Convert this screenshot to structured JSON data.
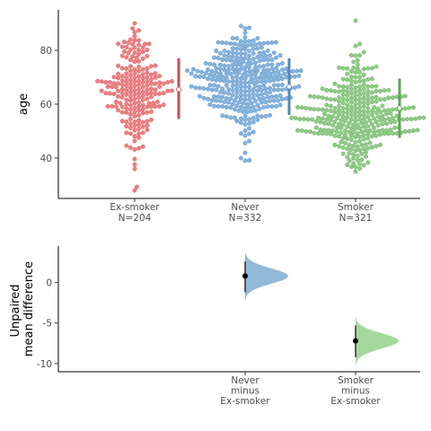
{
  "chart_data": [
    {
      "type": "scatter",
      "subtype": "swarm",
      "ylabel": "age",
      "ylim": [
        25,
        95
      ],
      "yticks": [
        40,
        60,
        80
      ],
      "groups": [
        {
          "id": "exsmoker",
          "label": "Ex-smoker",
          "n_label": "N=204",
          "n": 204,
          "color": "#E05759",
          "y_min": 28,
          "y_max": 90,
          "mean": 65.5,
          "sd_low": 54.5,
          "sd_high": 77.0,
          "center": 66,
          "spread": 10.5
        },
        {
          "id": "never",
          "label": "Never",
          "n_label": "N=332",
          "n": 332,
          "color": "#5C97CC",
          "y_min": 39,
          "y_max": 89,
          "mean": 66.5,
          "sd_low": 56.0,
          "sd_high": 77.0,
          "center": 69,
          "spread": 9
        },
        {
          "id": "smoker",
          "label": "Smoker",
          "n_label": "N=321",
          "n": 321,
          "color": "#69B65F",
          "y_min": 35,
          "y_max": 91,
          "mean": 58.5,
          "sd_low": 47.5,
          "sd_high": 69.5,
          "center": 56,
          "spread": 10
        }
      ]
    },
    {
      "type": "scatter",
      "subtype": "bootstrap-difference",
      "ylabel_lines": [
        "Unpaired",
        "mean difference"
      ],
      "ylim": [
        -11,
        4.5
      ],
      "yticks": [
        0,
        -5,
        -10
      ],
      "comparisons": [
        {
          "id": "never-vs-exsmoker",
          "label_lines": [
            "Never",
            "minus",
            "Ex-smoker"
          ],
          "slot": 1,
          "color": "#92B8DA",
          "mean_diff": 0.8,
          "ci_low": -1.2,
          "ci_high": 2.6,
          "dist_min": -2.2,
          "dist_max": 3.6,
          "dist_sd": 0.95
        },
        {
          "id": "smoker-vs-exsmoker",
          "label_lines": [
            "Smoker",
            "minus",
            "Ex-smoker"
          ],
          "slot": 2,
          "color": "#A5D89D",
          "mean_diff": -7.2,
          "ci_low": -9.2,
          "ci_high": -5.3,
          "dist_min": -10.2,
          "dist_max": -4.2,
          "dist_sd": 0.95
        }
      ]
    }
  ]
}
